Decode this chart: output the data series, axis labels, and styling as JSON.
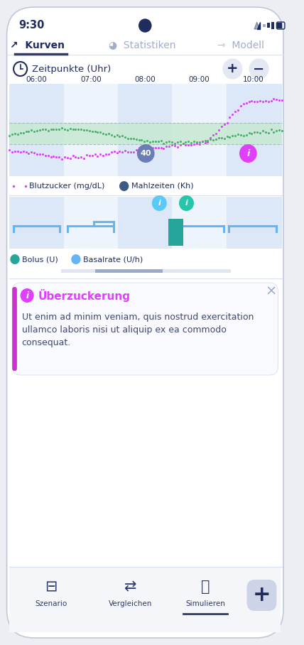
{
  "bg_color": "#eceef4",
  "white": "#ffffff",
  "title_time": "9:30",
  "tab_kurven": "Kurven",
  "tab_statistiken": "Statistiken",
  "tab_modell": "Modell",
  "active_tab_color": "#1e2d5e",
  "inactive_tab_color": "#a0aec8",
  "zeitpunkte_label": "Zeitpunkte (Uhr)",
  "time_labels": [
    "06:00",
    "07:00",
    "08:00",
    "09:00",
    "10:00"
  ],
  "chart_bg_light": "#dce8f8",
  "chart_bg_white": "#eef4fc",
  "green_band_color": "#c5e8d0",
  "green_line_color": "#4caf6e",
  "magenta_line_color": "#e040fb",
  "blood_sugar_legend": "Blutzucker (mg/dL)",
  "meal_legend": "Mahlzeiten (Kh)",
  "meal_legend_color": "#3d5a80",
  "bolus_legend": "Bolus (U)",
  "bolus_color": "#26a69a",
  "basalrate_legend": "Basalrate (U/h)",
  "basalrate_color": "#64b5f6",
  "notif_title": "Überzuckerung",
  "notif_color": "#e040fb",
  "notif_text_line1": "Ut enim ad minim veniam, quis nostrud exercitation",
  "notif_text_line2": "ullamco laboris nisi ut aliquip ex ea commodo",
  "notif_text_line3": "consequat.",
  "notif_text_color": "#3d4a70",
  "nav_szenario": "Szenario",
  "nav_vergleichen": "Vergleichen",
  "nav_simulieren": "Simulieren",
  "nav_color": "#2d3a6b",
  "plus_btn_color": "#cdd4e8",
  "plus_minus_btn_color": "#e4e8f2",
  "underline_color": "#2d3a6b",
  "scrollbar_color": "#9baac9",
  "annotation_40": "40",
  "annotation_i": "i",
  "info_btn_blue": "#5bc8f5",
  "info_btn_teal": "#26c6aa"
}
